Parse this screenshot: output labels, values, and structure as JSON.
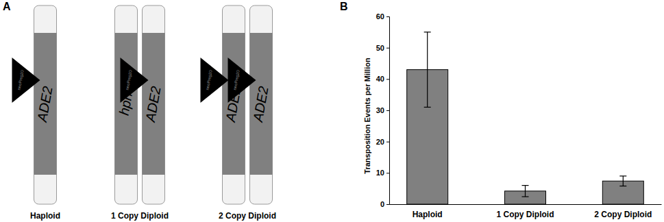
{
  "panels": [
    "A",
    "B"
  ],
  "diagram": {
    "strains": [
      {
        "name": "Haploid",
        "chromosomes": [
          {
            "gene": "ADE2",
            "insert": "neoPreg20"
          }
        ]
      },
      {
        "name": "1 Copy Diploid",
        "chromosomes": [
          {
            "gene": "hph"
          },
          {
            "gene": "ADE2",
            "insert": "neoPreg20"
          }
        ]
      },
      {
        "name": "2 Copy Diploid",
        "chromosomes": [
          {
            "gene": "ADE2",
            "insert": "neoPreg20"
          },
          {
            "gene": "ADE2",
            "insert": "neoPreg20"
          }
        ]
      }
    ]
  },
  "chart_data": {
    "type": "bar",
    "y_label": "Transposition Events per Million",
    "categories": [
      "Haploid",
      "1 Copy Diploid",
      "2 Copy Diploid"
    ],
    "values": [
      43,
      4.2,
      7.4
    ],
    "errors": [
      12,
      1.8,
      1.6
    ],
    "color": "#808080",
    "ylim": [
      0,
      60
    ],
    "yticks": [
      0,
      10,
      20,
      30,
      40,
      50,
      60
    ],
    "grid": false
  }
}
